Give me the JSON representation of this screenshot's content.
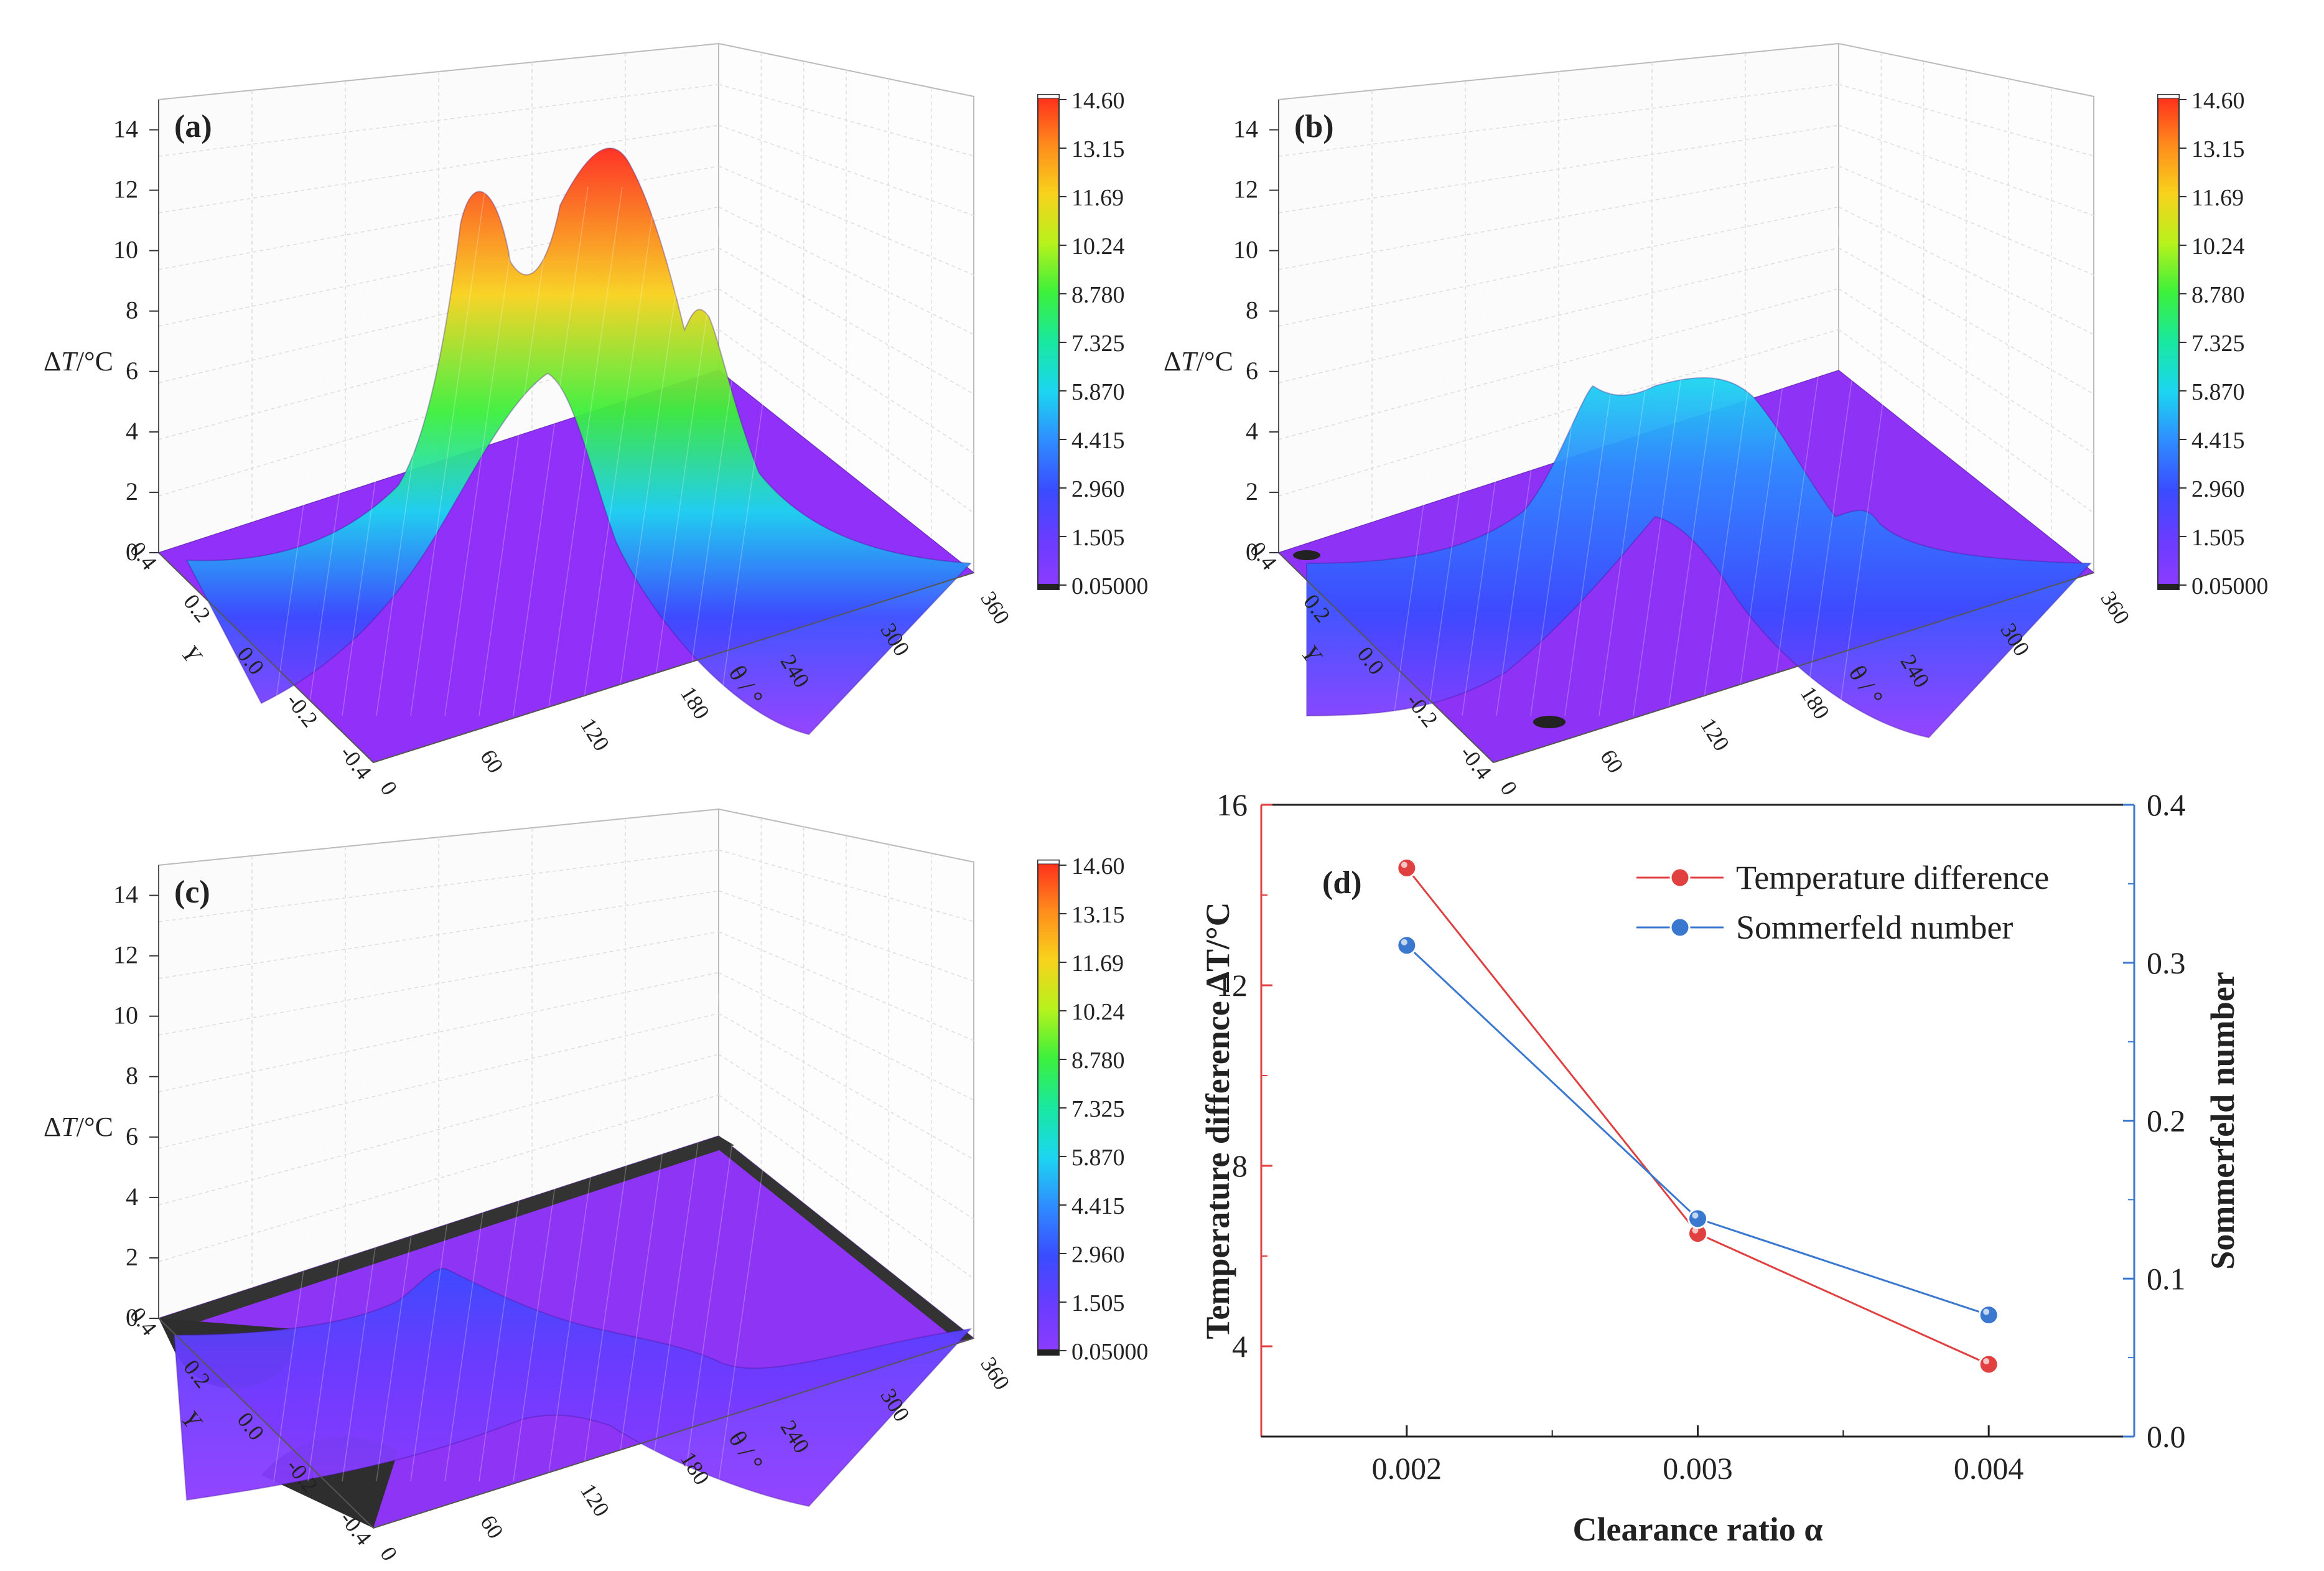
{
  "panel_labels": [
    "(a)",
    "(b)",
    "(c)",
    "(d)"
  ],
  "surface_axes": {
    "z_label_prefix": "Δ",
    "z_label_var": "T",
    "z_label_unit": "/°C",
    "z_ticks": [
      "0",
      "2",
      "4",
      "6",
      "8",
      "10",
      "12",
      "14"
    ],
    "y_label": "Y",
    "y_ticks": [
      "0.4",
      "0.2",
      "0.0",
      "-0.2",
      "-0.4"
    ],
    "theta_label": "θ / °",
    "theta_ticks": [
      "0",
      "60",
      "120",
      "180",
      "240",
      "300",
      "360"
    ]
  },
  "colorbar": {
    "ticks": [
      "14.60",
      "13.15",
      "11.69",
      "10.24",
      "8.780",
      "7.325",
      "5.870",
      "4.415",
      "2.960",
      "1.505",
      "0.05000"
    ],
    "colors": [
      "#8f3cff",
      "#6a3cff",
      "#3a4cff",
      "#2f8cff",
      "#1cd6f0",
      "#18e8a0",
      "#3cf03c",
      "#b8f21c",
      "#f8d21c",
      "#ff8a1c",
      "#ff2a1c"
    ]
  },
  "chart_data": [
    {
      "type": "surface",
      "panel": "(a)",
      "xlabel": "θ / °",
      "ylabel": "Y",
      "zlabel": "ΔT/°C",
      "xlim": [
        0,
        360
      ],
      "ylim": [
        -0.4,
        0.4
      ],
      "zlim": [
        0,
        15
      ],
      "colorbar_range": [
        0.05,
        14.6
      ],
      "peaks": [
        {
          "theta": 150,
          "y": 0.3,
          "dT": 12.3
        },
        {
          "theta": 210,
          "y": 0.0,
          "dT": 14.6
        },
        {
          "theta": 260,
          "y": -0.3,
          "dT": 8.6
        },
        {
          "theta": 170,
          "y": -0.3,
          "dT": 6.9
        }
      ]
    },
    {
      "type": "surface",
      "panel": "(b)",
      "xlabel": "θ / °",
      "ylabel": "Y",
      "zlabel": "ΔT/°C",
      "xlim": [
        0,
        360
      ],
      "ylim": [
        -0.4,
        0.4
      ],
      "zlim": [
        0,
        15
      ],
      "colorbar_range": [
        0.05,
        14.6
      ],
      "peaks": [
        {
          "theta": 150,
          "y": 0.3,
          "dT": 6.6
        },
        {
          "theta": 220,
          "y": 0.0,
          "dT": 6.2
        },
        {
          "theta": 260,
          "y": -0.3,
          "dT": 3.5
        },
        {
          "theta": 170,
          "y": -0.3,
          "dT": 3.0
        }
      ]
    },
    {
      "type": "surface",
      "panel": "(c)",
      "xlabel": "θ / °",
      "ylabel": "Y",
      "zlabel": "ΔT/°C",
      "xlim": [
        0,
        360
      ],
      "ylim": [
        -0.4,
        0.4
      ],
      "zlim": [
        0,
        15
      ],
      "colorbar_range": [
        0.05,
        14.6
      ],
      "peaks": [
        {
          "theta": 150,
          "y": 0.3,
          "dT": 3.5
        },
        {
          "theta": 220,
          "y": 0.0,
          "dT": 2.4
        },
        {
          "theta": 260,
          "y": -0.3,
          "dT": 1.5
        }
      ]
    },
    {
      "type": "line",
      "panel": "(d)",
      "x": [
        0.002,
        0.003,
        0.004
      ],
      "xlabel": "Clearance ratio α",
      "ylabel": "Temperature difference ΔT/°C",
      "ylabel_right": "Sommerfeld number",
      "xlim": [
        0.0015,
        0.0045
      ],
      "ylim": [
        2,
        16
      ],
      "ylim_right": [
        0.0,
        0.4
      ],
      "x_ticks": [
        "0.002",
        "0.003",
        "0.004"
      ],
      "y_ticks": [
        "4",
        "8",
        "12",
        "16"
      ],
      "y_ticks_right": [
        "0.0",
        "0.1",
        "0.2",
        "0.3",
        "0.4"
      ],
      "series": [
        {
          "name": "Temperature difference",
          "axis": "left",
          "values": [
            14.6,
            6.5,
            3.6
          ],
          "color": "#e04040"
        },
        {
          "name": "Sommerfeld number",
          "axis": "right",
          "values": [
            0.311,
            0.138,
            0.077
          ],
          "color": "#3a78d0"
        }
      ],
      "legend": "top-right",
      "grid": false
    }
  ]
}
